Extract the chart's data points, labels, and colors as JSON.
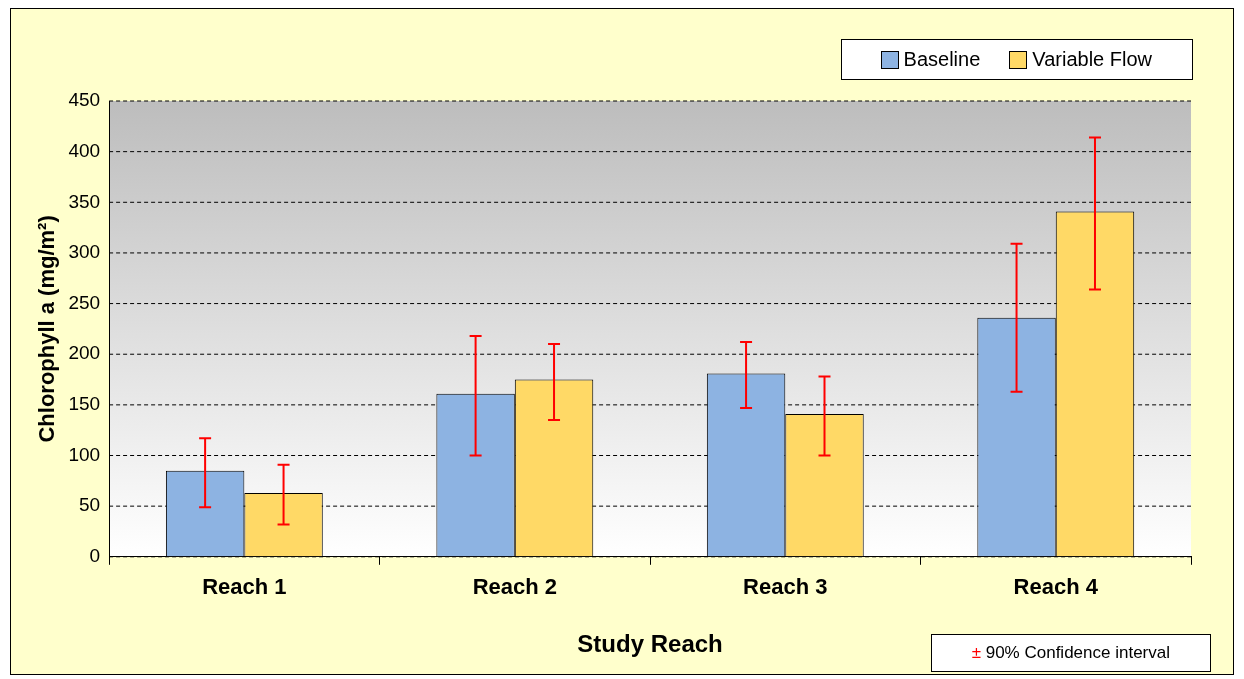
{
  "chart_data": {
    "type": "bar",
    "xlabel": "Study Reach",
    "ylabel": "Chlorophyll a (mg/m²)",
    "categories": [
      "Reach 1",
      "Reach 2",
      "Reach 3",
      "Reach 4"
    ],
    "series": [
      {
        "name": "Baseline",
        "color": "#8db3e2",
        "values": [
          85,
          161,
          181,
          236
        ],
        "errors": [
          [
            49,
            117
          ],
          [
            100,
            218
          ],
          [
            147,
            212
          ],
          [
            163,
            309
          ]
        ]
      },
      {
        "name": "Variable Flow",
        "color": "#ffd966",
        "values": [
          63,
          175,
          141,
          341
        ],
        "errors": [
          [
            32,
            91
          ],
          [
            135,
            210
          ],
          [
            100,
            178
          ],
          [
            264,
            414
          ]
        ]
      }
    ],
    "ylim": [
      0,
      450
    ],
    "yticks": [
      0,
      50,
      100,
      150,
      200,
      250,
      300,
      350,
      400,
      450
    ],
    "grid": "y",
    "legend": "top right",
    "annotations": [
      "± 90% Confidence interval"
    ]
  }
}
